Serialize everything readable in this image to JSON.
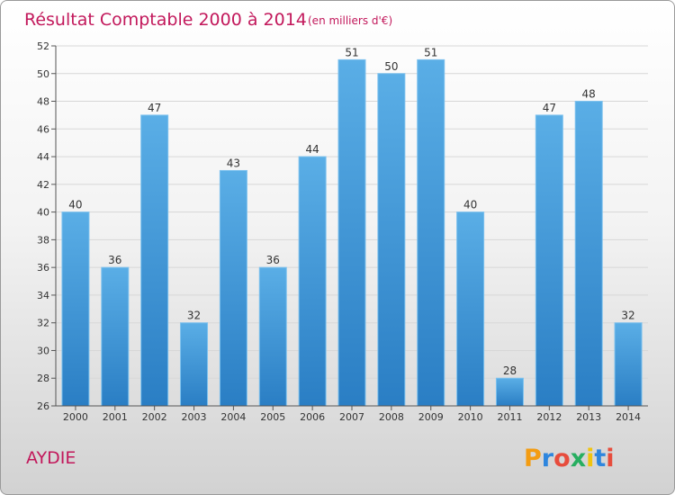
{
  "chart_data": {
    "type": "bar",
    "title": "Résultat Comptable 2000 à 2014",
    "subtitle": "(en milliers d'€)",
    "categories": [
      "2000",
      "2001",
      "2002",
      "2003",
      "2004",
      "2005",
      "2006",
      "2007",
      "2008",
      "2009",
      "2010",
      "2011",
      "2012",
      "2013",
      "2014"
    ],
    "values": [
      40,
      36,
      47,
      32,
      43,
      36,
      44,
      51,
      50,
      51,
      40,
      28,
      47,
      48,
      32
    ],
    "ylim": [
      26,
      52
    ],
    "yticks": [
      26,
      28,
      30,
      32,
      34,
      36,
      38,
      40,
      42,
      44,
      46,
      48,
      50,
      52
    ],
    "xlabel": "",
    "ylabel": "",
    "grid": true,
    "bar_color_top": "#5aaee6",
    "bar_color_bottom": "#2a7ec4"
  },
  "commune_name": "AYDIE",
  "logo": {
    "letters": [
      "P",
      "r",
      "o",
      "x",
      "i",
      "t",
      "i"
    ],
    "colors": [
      "#f39c12",
      "#2e86de",
      "#e74c3c",
      "#27ae60",
      "#f1c40f",
      "#2e86de",
      "#e74c3c"
    ]
  }
}
